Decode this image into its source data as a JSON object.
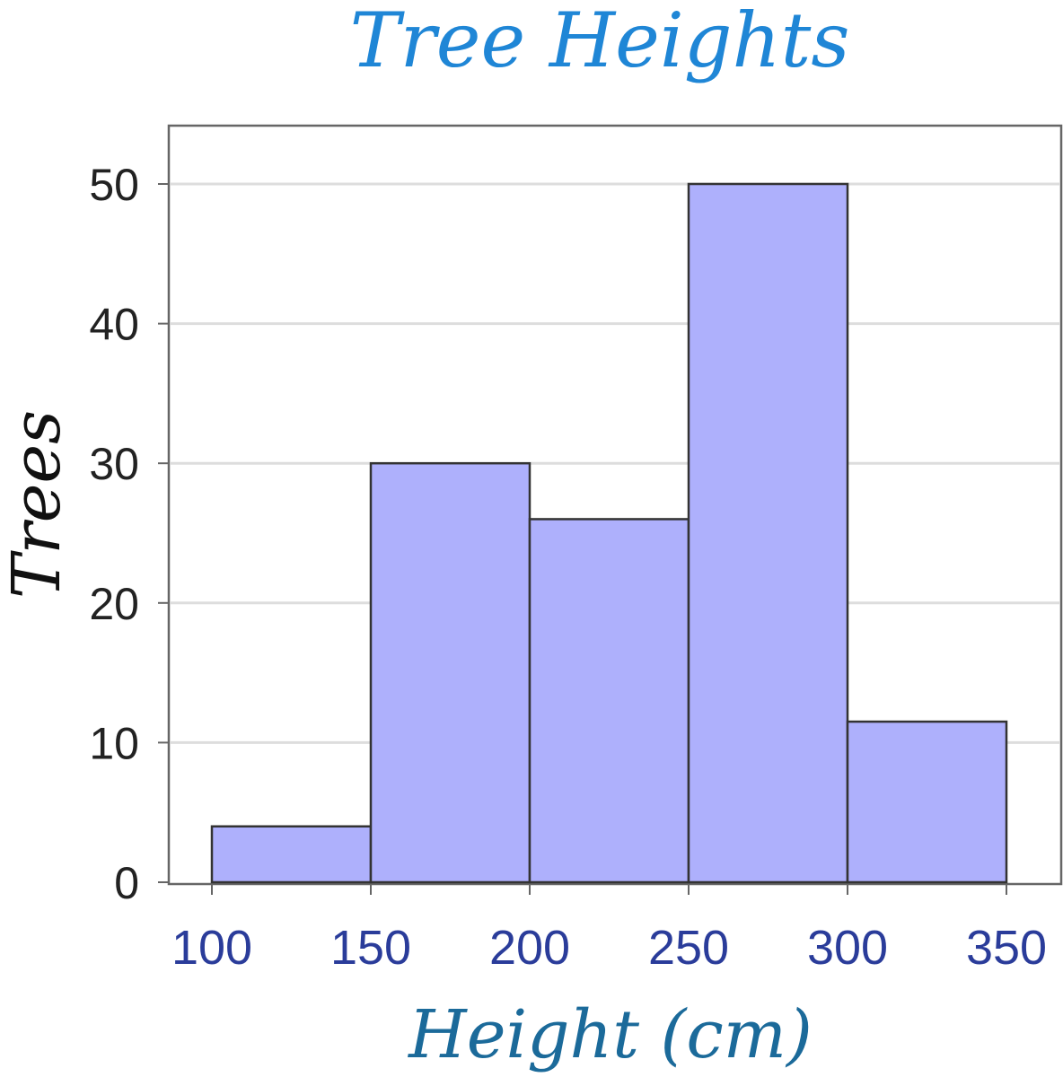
{
  "chart_data": {
    "type": "bar",
    "title": "Tree Heights",
    "xlabel": "Height (cm)",
    "ylabel": "Trees",
    "bins": [
      {
        "from": 100,
        "to": 150,
        "value": 4
      },
      {
        "from": 150,
        "to": 200,
        "value": 30
      },
      {
        "from": 200,
        "to": 250,
        "value": 26
      },
      {
        "from": 250,
        "to": 300,
        "value": 50
      },
      {
        "from": 300,
        "to": 350,
        "value": 11.5
      }
    ],
    "x_ticks": [
      "100",
      "150",
      "200",
      "250",
      "300",
      "350"
    ],
    "y_ticks": [
      "0",
      "10",
      "20",
      "30",
      "40",
      "50"
    ],
    "xlim": [
      100,
      350
    ],
    "ylim": [
      0,
      50
    ],
    "grid": "horizontal",
    "colors": {
      "bar_fill": "#aeb0fc",
      "bar_stroke": "#333333",
      "title": "#1f86d6",
      "xlabel": "#1b6a9a",
      "ylabel": "#111111",
      "xtick": "#2a3c9a",
      "grid": "#dddddd"
    }
  }
}
